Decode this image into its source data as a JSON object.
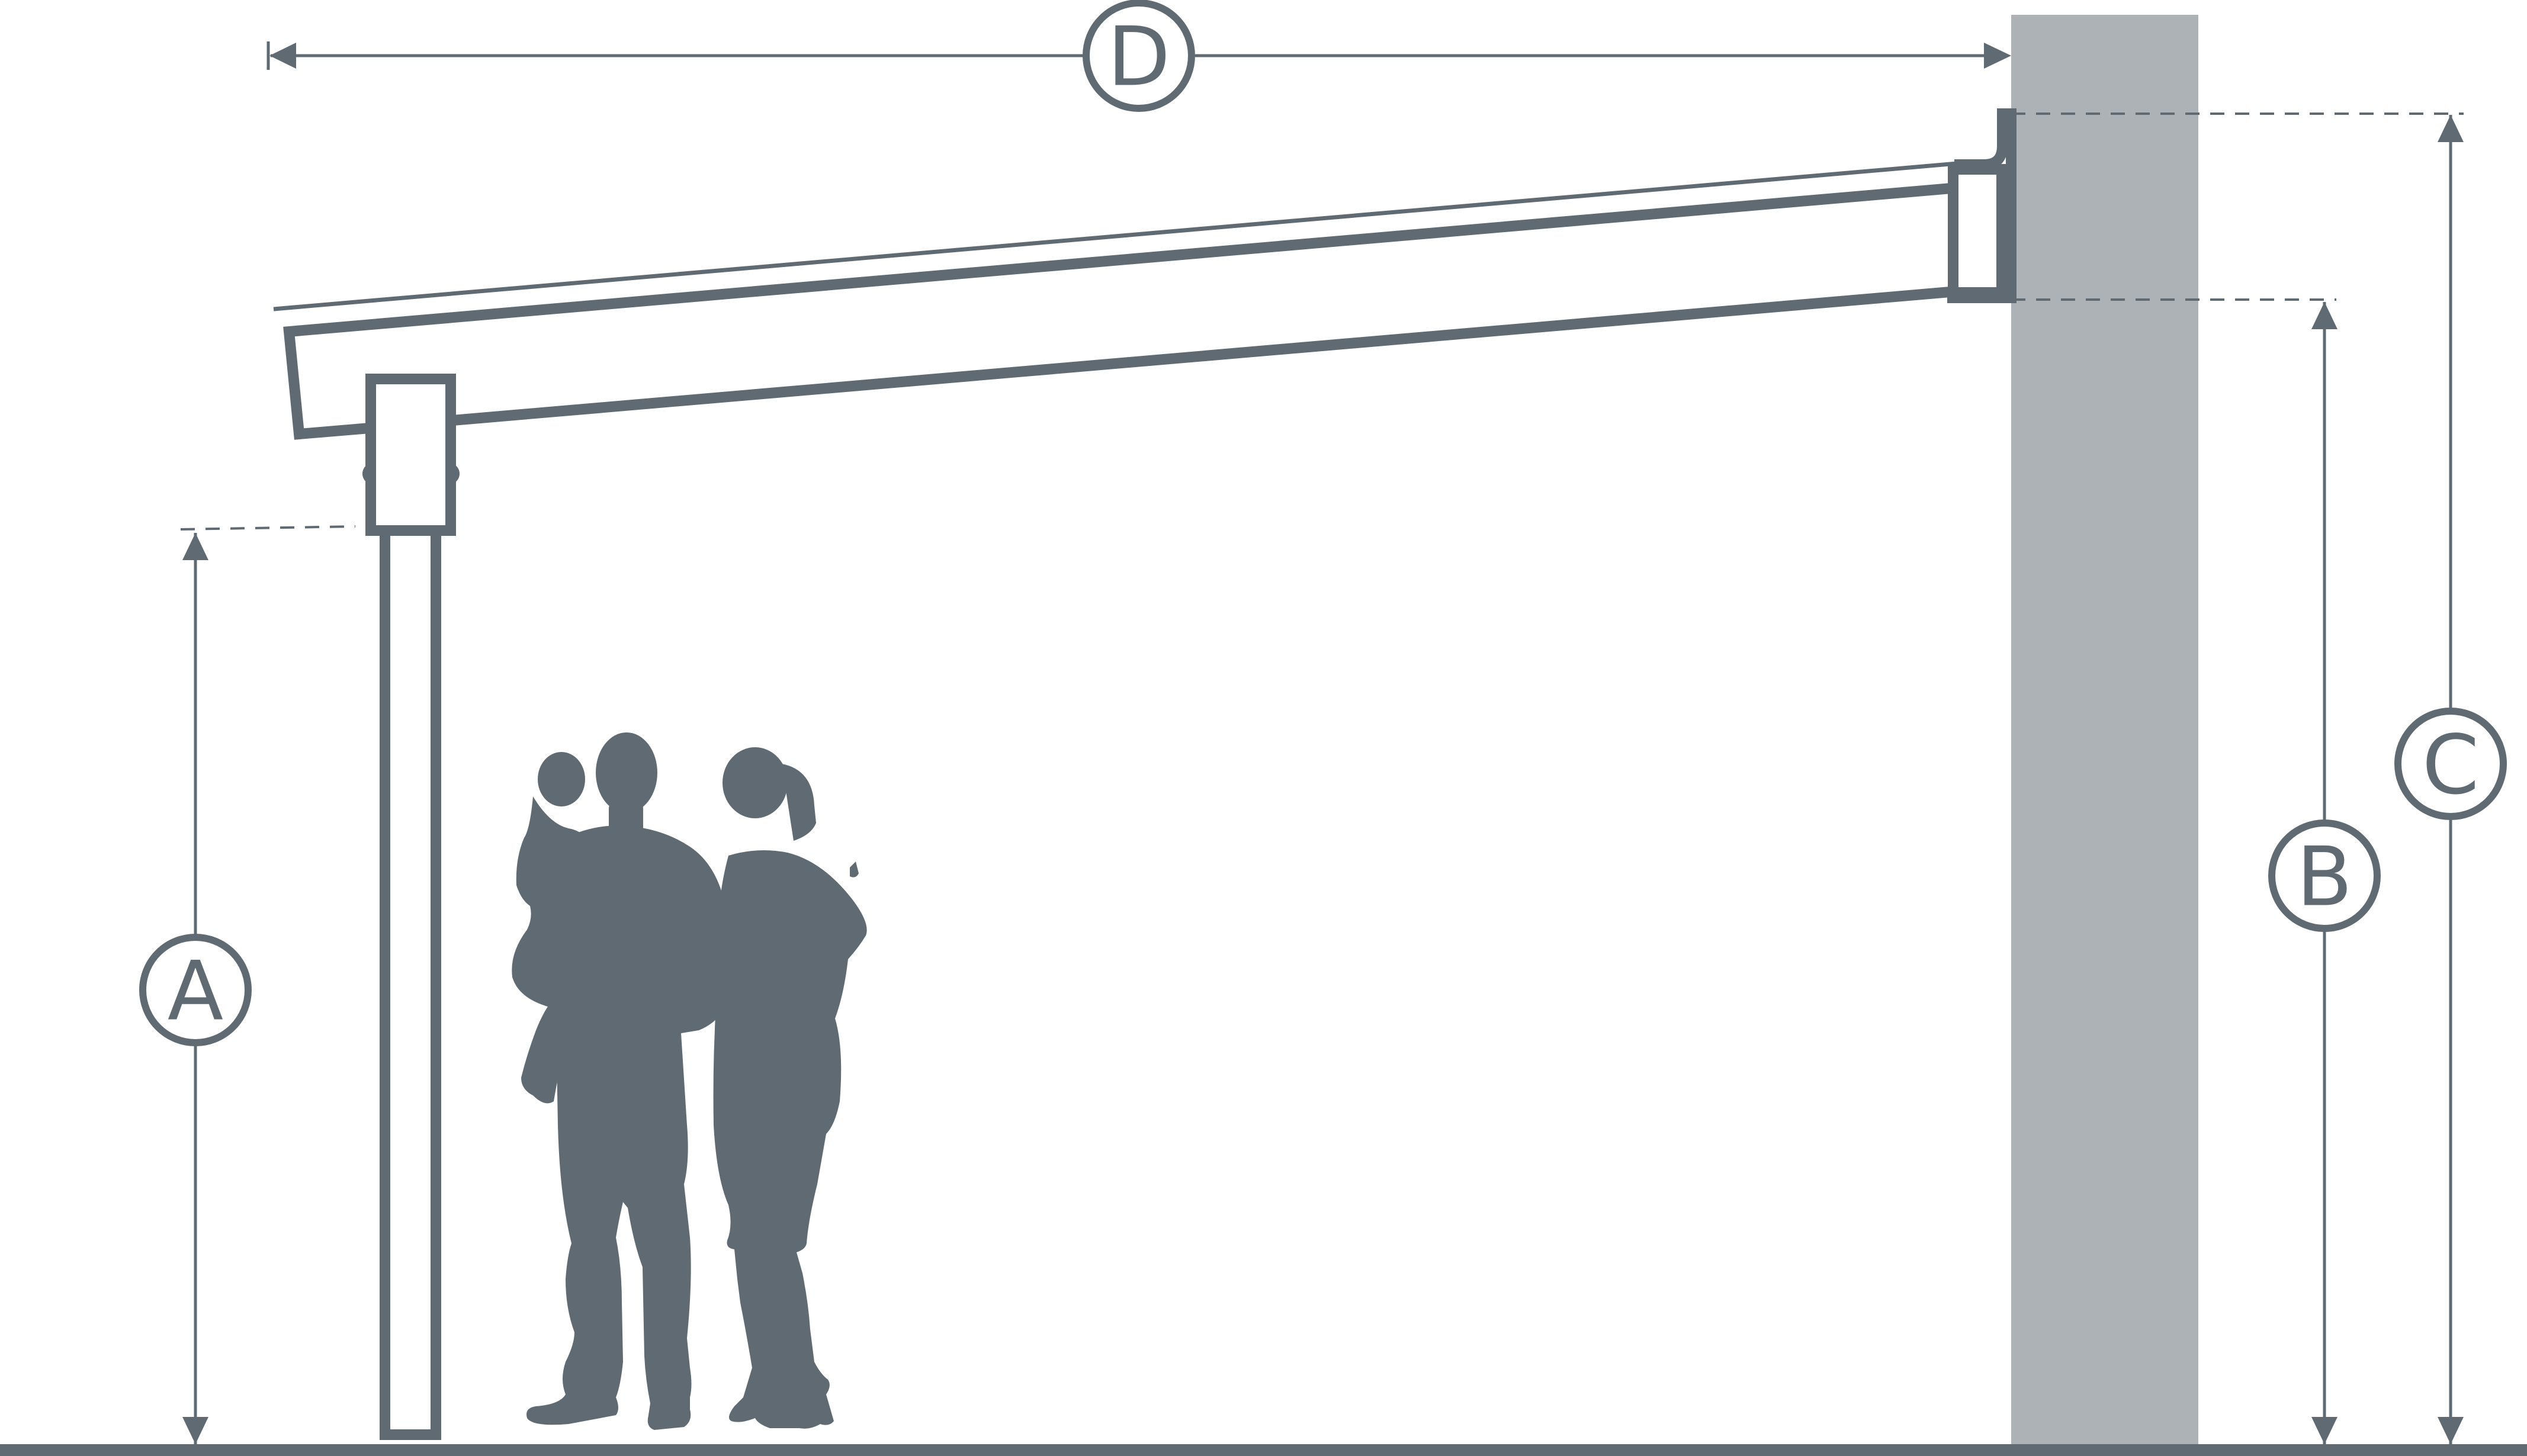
{
  "labels": {
    "a": "A",
    "b": "B",
    "c": "C",
    "d": "D"
  },
  "colors": {
    "line": "#5f6a72",
    "wall": "#adb2b6",
    "background": "#ffffff"
  }
}
